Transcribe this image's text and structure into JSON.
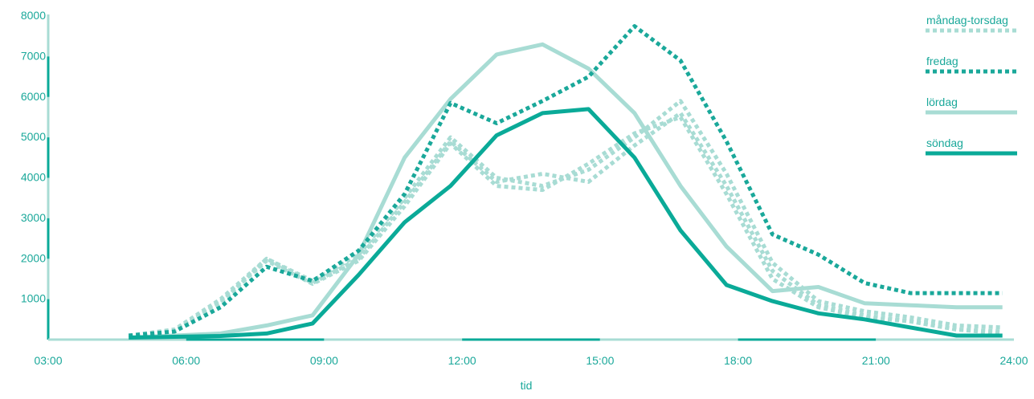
{
  "chart_data": {
    "type": "line",
    "xlabel": "tid",
    "ylabel": "",
    "x_ticks": [
      "03:00",
      "06:00",
      "09:00",
      "12:00",
      "15:00",
      "18:00",
      "21:00",
      "24:00"
    ],
    "y_ticks": [
      1000,
      2000,
      3000,
      4000,
      5000,
      6000,
      7000,
      8000
    ],
    "xlim": [
      3,
      24
    ],
    "ylim": [
      0,
      8000
    ],
    "x": [
      4.75,
      5.75,
      6.75,
      7.75,
      8.75,
      9.75,
      10.75,
      11.75,
      12.75,
      13.75,
      14.75,
      15.75,
      16.75,
      17.75,
      18.75,
      19.75,
      20.75,
      21.75,
      22.75,
      23.75
    ],
    "legend_position": "top-right",
    "grid": false,
    "series": [
      {
        "name": "måndag-torsdag",
        "color": "#a8dcd4",
        "style": "dotted",
        "width": 5,
        "values": [
          100,
          200,
          900,
          2000,
          1400,
          2000,
          3400,
          4900,
          3900,
          4100,
          3900,
          4800,
          5600,
          3800,
          1700,
          850,
          600,
          450,
          250,
          200
        ]
      },
      {
        "name": "måndag-torsdag",
        "color": "#a8dcd4",
        "style": "dotted",
        "width": 5,
        "values": [
          100,
          250,
          1000,
          2000,
          1450,
          2100,
          3500,
          5000,
          4000,
          3800,
          4200,
          5000,
          5900,
          4100,
          1900,
          950,
          700,
          550,
          350,
          300
        ]
      },
      {
        "name": "måndag-torsdag",
        "color": "#a8dcd4",
        "style": "dotted",
        "width": 5,
        "values": [
          100,
          220,
          950,
          1950,
          1380,
          1950,
          3300,
          4850,
          3800,
          3700,
          4350,
          5100,
          5500,
          3600,
          1500,
          800,
          550,
          450,
          250,
          150
        ]
      },
      {
        "name": "fredag",
        "color": "#1aa89a",
        "style": "dotted",
        "width": 5,
        "values": [
          100,
          200,
          800,
          1800,
          1450,
          2200,
          3600,
          5850,
          5350,
          5900,
          6500,
          7750,
          6900,
          4900,
          2600,
          2100,
          1400,
          1150,
          1150,
          1150
        ]
      },
      {
        "name": "lördag",
        "color": "#a8dcd4",
        "style": "solid",
        "width": 5,
        "values": [
          50,
          100,
          150,
          350,
          600,
          2100,
          4500,
          5950,
          7050,
          7300,
          6700,
          5600,
          3800,
          2300,
          1200,
          1300,
          900,
          850,
          800,
          800
        ]
      },
      {
        "name": "söndag",
        "color": "#0aaa98",
        "style": "solid",
        "width": 5,
        "values": [
          50,
          70,
          90,
          150,
          400,
          1600,
          2900,
          3800,
          5050,
          5600,
          5700,
          4500,
          2700,
          1350,
          950,
          650,
          500,
          300,
          100,
          100
        ]
      }
    ],
    "legend": [
      {
        "label": "måndag-torsdag",
        "color": "#a8dcd4",
        "style": "dotted"
      },
      {
        "label": "fredag",
        "color": "#1aa89a",
        "style": "dotted"
      },
      {
        "label": "lördag",
        "color": "#a8dcd4",
        "style": "solid"
      },
      {
        "label": "söndag",
        "color": "#0aaa98",
        "style": "solid"
      }
    ],
    "colors": {
      "axis_light": "#a8dcd4",
      "axis_dark": "#0aaa98",
      "text": "#1aa89a"
    }
  }
}
